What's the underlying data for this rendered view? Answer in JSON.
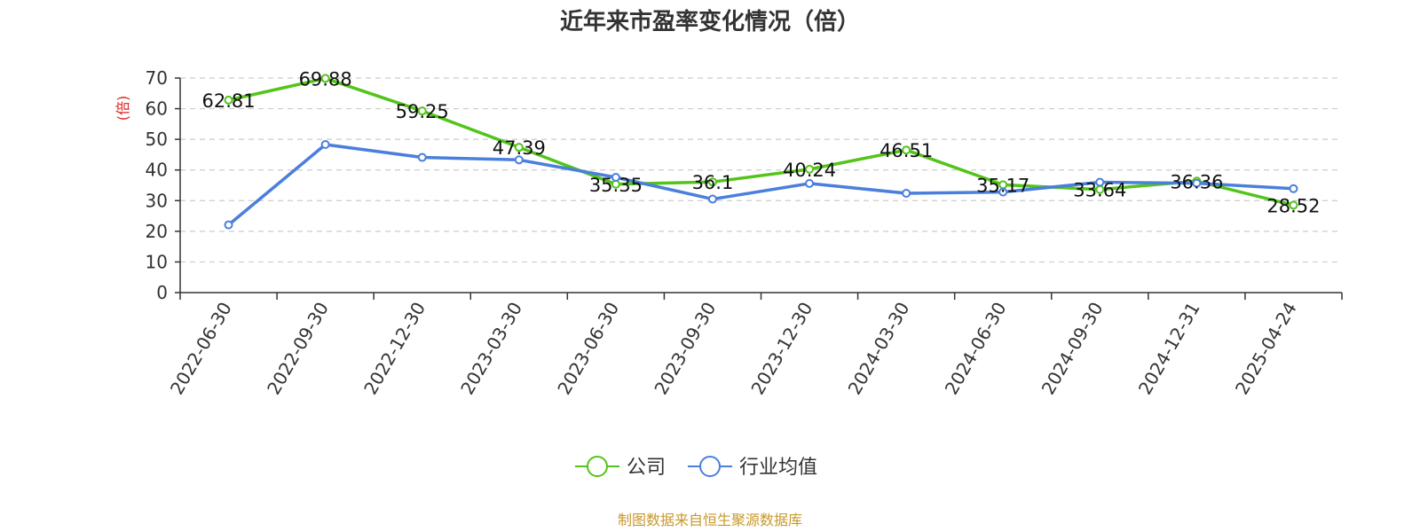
{
  "chart_data": {
    "type": "line",
    "title": "近年来市盈率变化情况（倍）",
    "ylabel": "(倍)",
    "ylabel_color": "#e02020",
    "ylim": [
      0,
      70
    ],
    "yticks": [
      "0",
      "10",
      "20",
      "30",
      "40",
      "50",
      "60",
      "70"
    ],
    "grid": "horizontal dashed",
    "legend_position": "bottom-center",
    "categories": [
      "2022-06-30",
      "2022-09-30",
      "2022-12-30",
      "2023-03-30",
      "2023-06-30",
      "2023-09-30",
      "2023-12-30",
      "2024-03-30",
      "2024-06-30",
      "2024-09-30",
      "2024-12-31",
      "2025-04-24"
    ],
    "series": [
      {
        "name": "公司",
        "color": "#52c41a",
        "values": [
          62.81,
          69.88,
          59.25,
          47.39,
          35.35,
          36.1,
          40.24,
          46.51,
          35.17,
          33.64,
          36.36,
          28.52
        ],
        "labels": [
          "62.81",
          "69.88",
          "59.25",
          "47.39",
          "35.35",
          "36.1",
          "40.24",
          "46.51",
          "35.17",
          "33.64",
          "36.36",
          "28.52"
        ]
      },
      {
        "name": "行业均值",
        "color": "#4a7fdc",
        "values": [
          22.1,
          48.3,
          44.1,
          43.3,
          37.6,
          30.5,
          35.6,
          32.4,
          32.8,
          36.0,
          35.7,
          33.9
        ]
      }
    ],
    "source": "制图数据来自恒生聚源数据库",
    "source_color": "#c8982a"
  }
}
